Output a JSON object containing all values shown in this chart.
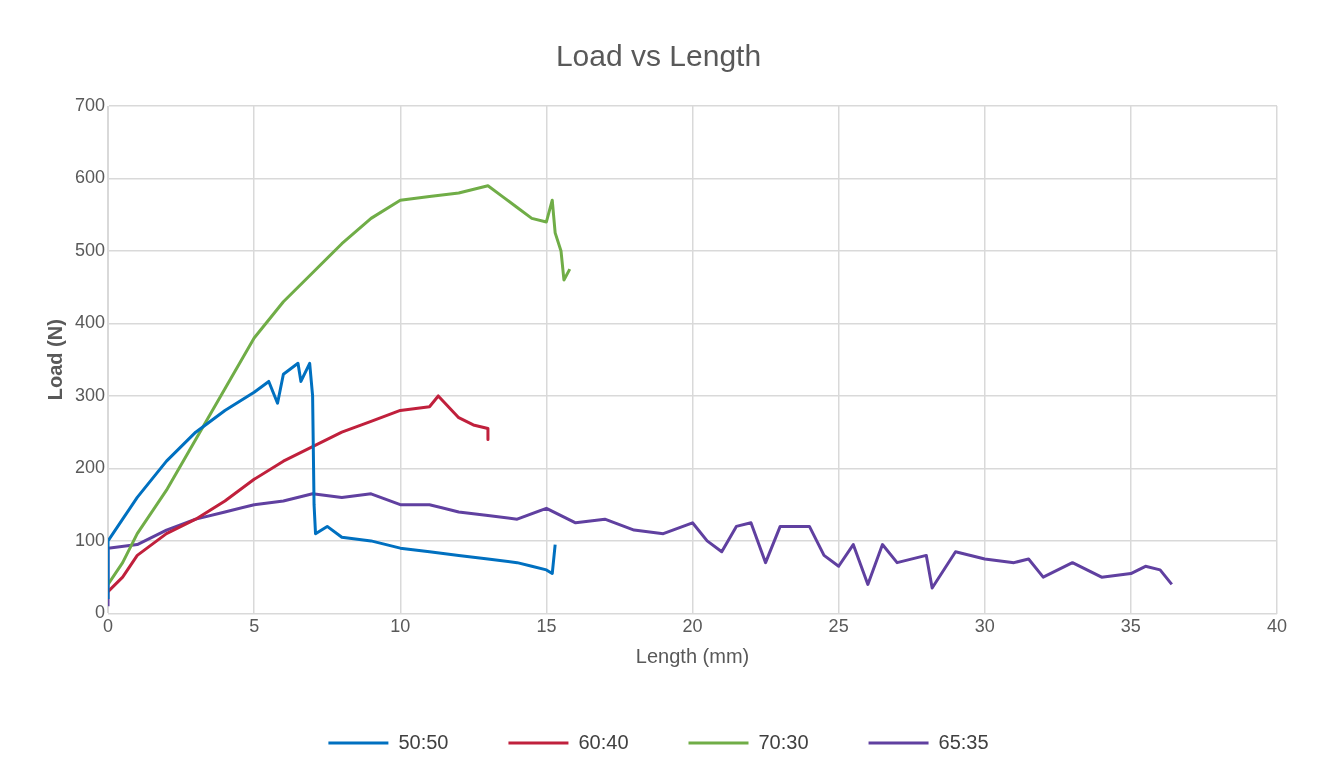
{
  "chart_data": {
    "type": "line",
    "title": "Load vs Length",
    "xlabel": "Length (mm)",
    "ylabel": "Load (N)",
    "xlim": [
      0,
      40
    ],
    "xticks": [
      0,
      5,
      10,
      15,
      20,
      25,
      30,
      35,
      40
    ],
    "ylim": [
      0,
      700
    ],
    "yticks": [
      0,
      100,
      200,
      300,
      400,
      500,
      600,
      700
    ],
    "grid": true,
    "legend": "bottom",
    "marker": "none",
    "line_style": "solid",
    "series": [
      {
        "name": "50:50",
        "color": "#0070c0",
        "x": [
          0,
          0,
          0.5,
          1,
          2,
          3,
          4,
          5,
          5.5,
          5.8,
          6,
          6.5,
          6.6,
          6.9,
          7,
          7.05,
          7.1,
          7.5,
          8,
          9,
          10,
          11,
          12,
          13,
          14,
          14.5,
          15,
          15.2,
          15.3
        ],
        "values": [
          20,
          100,
          130,
          160,
          210,
          250,
          280,
          305,
          320,
          290,
          330,
          345,
          320,
          345,
          300,
          150,
          110,
          120,
          105,
          100,
          90,
          85,
          80,
          75,
          70,
          65,
          60,
          55,
          95
        ]
      },
      {
        "name": "60:40",
        "color": "#c0203c",
        "x": [
          0,
          0.5,
          1,
          2,
          3,
          4,
          5,
          6,
          7,
          8,
          9,
          10,
          11,
          11.3,
          12,
          12.5,
          13,
          13
        ],
        "values": [
          30,
          50,
          80,
          110,
          130,
          155,
          185,
          210,
          230,
          250,
          265,
          280,
          285,
          300,
          270,
          260,
          255,
          240
        ]
      },
      {
        "name": "70:30",
        "color": "#70ad47",
        "x": [
          0,
          0.5,
          1,
          2,
          3,
          4,
          5,
          6,
          7,
          8,
          9,
          10,
          11,
          12,
          13,
          13.5,
          14,
          14.5,
          15,
          15.2,
          15.3,
          15.5,
          15.6,
          15.8
        ],
        "values": [
          40,
          70,
          110,
          170,
          240,
          310,
          380,
          430,
          470,
          510,
          545,
          570,
          575,
          580,
          590,
          575,
          560,
          545,
          540,
          570,
          525,
          500,
          460,
          475
        ]
      },
      {
        "name": "65:35",
        "color": "#6040a0",
        "x": [
          0,
          0,
          1,
          2,
          3,
          4,
          5,
          6,
          7,
          8,
          9,
          10,
          11,
          12,
          13,
          14,
          15,
          16,
          17,
          18,
          19,
          20,
          20.5,
          21,
          21.5,
          22,
          22.5,
          23,
          24,
          24.5,
          25,
          25.5,
          26,
          26.5,
          27,
          28,
          28.2,
          29,
          30,
          31,
          31.5,
          32,
          33,
          34,
          35,
          35.5,
          36,
          36.4
        ],
        "values": [
          10,
          90,
          95,
          115,
          130,
          140,
          150,
          155,
          165,
          160,
          165,
          150,
          150,
          140,
          135,
          130,
          145,
          125,
          130,
          115,
          110,
          125,
          100,
          85,
          120,
          125,
          70,
          120,
          120,
          80,
          65,
          95,
          40,
          95,
          70,
          80,
          35,
          85,
          75,
          70,
          75,
          50,
          70,
          50,
          55,
          65,
          60,
          40
        ]
      }
    ]
  }
}
